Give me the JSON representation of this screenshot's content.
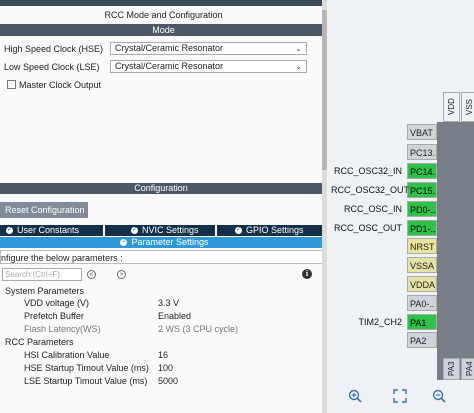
{
  "panel": {
    "title": "RCC Mode and Configuration",
    "mode_header": "Mode",
    "hse_label": "High Speed Clock (HSE)",
    "hse_value": "Crystal/Ceramic Resonator",
    "lse_label": "Low Speed Clock (LSE)",
    "lse_value": "Crystal/Ceramic Resonator",
    "master_clock_output": "Master Clock Output",
    "config_header": "Configuration",
    "reset_button": "Reset Configuration",
    "tabs": [
      "User Constants",
      "NVIC Settings",
      "GPIO Settings",
      "Parameter Settings"
    ],
    "configure_text": "nfigure the below parameters :",
    "search_placeholder": "Search (Ctrl+F)",
    "search_prev": "<",
    "search_next": ">",
    "info_icon": "i"
  },
  "parameters": {
    "system_group": "System Parameters",
    "rcc_group": "RCC Parameters",
    "system": [
      {
        "label": "VDD voltage (V)",
        "value": "3.3 V"
      },
      {
        "label": "Prefetch Buffer",
        "value": "Enabled"
      },
      {
        "label": "Flash Latency(WS)",
        "value": "2 WS (3 CPU cycle)"
      }
    ],
    "rcc": [
      {
        "label": "HSI Calibration Value",
        "value": "16"
      },
      {
        "label": "HSE Startup Timout Value (ms)",
        "value": "100"
      },
      {
        "label": "LSE Startup Timout Value (ms)",
        "value": "5000"
      }
    ]
  },
  "pinout": {
    "top_pins": [
      "VDD",
      "VSS"
    ],
    "pins": [
      "VBAT",
      "PC13..",
      "PC14..",
      "PC15..",
      "PD0-..",
      "PD1-..",
      "NRST",
      "VSSA",
      "VDDA",
      "PA0-..",
      "PA1",
      "PA2"
    ],
    "signals": [
      "RCC_OSC32_IN",
      "RCC_OSC32_OUT",
      "RCC_OSC_IN",
      "RCC_OSC_OUT",
      "TIM2_CH2"
    ],
    "bottom_pins": [
      "PA3",
      "PA4"
    ]
  },
  "colors": {
    "header_bar": "#4c5866",
    "tab_dark": "#132f4a",
    "tab_active": "#2d9ad7",
    "pin_green": "#2ec24a",
    "pin_yellow": "#e3e3a6",
    "chip_body": "#777e88"
  },
  "toolbar_icons": [
    "zoom-in-icon",
    "fit-screen-icon",
    "zoom-out-icon"
  ]
}
